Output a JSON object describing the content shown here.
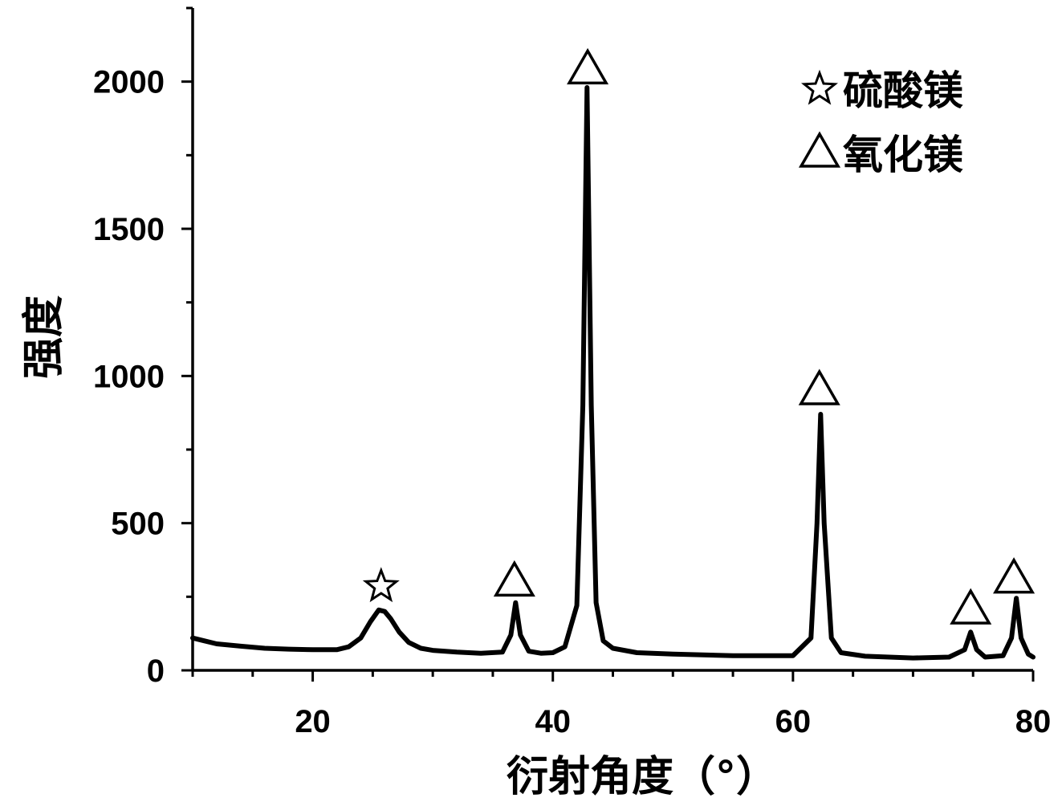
{
  "chart_data": {
    "type": "line",
    "xlabel": "衍射角度（°）",
    "ylabel": "强度",
    "xlim": [
      10,
      80
    ],
    "ylim": [
      0,
      2250
    ],
    "xticks": [
      20,
      40,
      60,
      80
    ],
    "yticks": [
      0,
      500,
      1000,
      1500,
      2000
    ],
    "x_minor_step": 5,
    "y_minor_step": 250,
    "grid": false,
    "legend_position": "top-right",
    "legend": [
      {
        "marker": "star",
        "label": "硫酸镁"
      },
      {
        "marker": "triangle",
        "label": "氧化镁"
      }
    ],
    "series": [
      {
        "x": [
          10,
          12,
          14,
          16,
          18,
          20,
          22,
          23,
          24,
          24.8,
          25.5,
          26,
          26.5,
          27.2,
          28,
          29,
          30,
          32,
          34,
          35.8,
          36.5,
          36.9,
          37.3,
          38,
          39,
          40,
          41,
          42,
          42.5,
          42.85,
          43.2,
          43.6,
          44.2,
          45,
          47,
          50,
          55,
          60,
          61.5,
          62,
          62.3,
          62.6,
          63.2,
          64,
          66,
          70,
          73,
          74.3,
          74.8,
          75.3,
          76,
          77.5,
          78.2,
          78.6,
          79,
          79.6,
          80
        ],
        "y": [
          110,
          90,
          82,
          75,
          72,
          70,
          70,
          80,
          110,
          165,
          205,
          200,
          175,
          130,
          95,
          75,
          68,
          62,
          58,
          62,
          120,
          230,
          120,
          65,
          58,
          60,
          80,
          220,
          900,
          1980,
          900,
          230,
          100,
          75,
          60,
          55,
          50,
          50,
          110,
          500,
          870,
          500,
          110,
          60,
          48,
          42,
          45,
          70,
          130,
          70,
          45,
          50,
          110,
          245,
          110,
          55,
          45
        ]
      }
    ],
    "annotations": [
      {
        "marker": "star",
        "x": 25.7,
        "y": 285
      },
      {
        "marker": "triangle",
        "x": 36.8,
        "y": 310
      },
      {
        "marker": "triangle",
        "x": 42.9,
        "y": 2050
      },
      {
        "marker": "triangle",
        "x": 62.2,
        "y": 960
      },
      {
        "marker": "triangle",
        "x": 74.8,
        "y": 215
      },
      {
        "marker": "triangle",
        "x": 78.4,
        "y": 320
      }
    ]
  }
}
